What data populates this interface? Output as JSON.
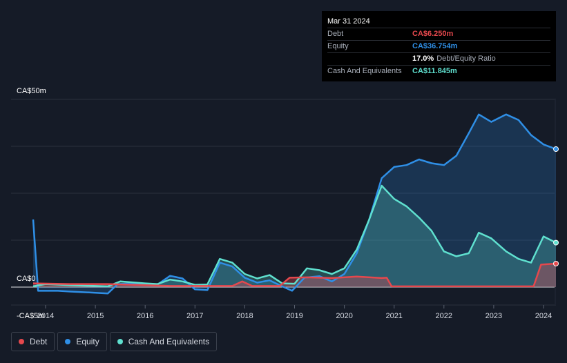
{
  "tooltip": {
    "date": "Mar 31 2024",
    "rows": [
      {
        "label": "Debt",
        "value": "CA$6.250m",
        "color": "#e5484d"
      },
      {
        "label": "Equity",
        "value": "CA$36.754m",
        "color": "#2f8fe6"
      },
      {
        "label": "",
        "value": "17.0%",
        "extra": "Debt/Equity Ratio",
        "color": "#ffffff"
      },
      {
        "label": "Cash And Equivalents",
        "value": "CA$11.845m",
        "color": "#5fe0cf"
      }
    ]
  },
  "legend": [
    {
      "label": "Debt",
      "color": "#e5484d"
    },
    {
      "label": "Equity",
      "color": "#2f8fe6"
    },
    {
      "label": "Cash And Equivalents",
      "color": "#5fe0cf"
    }
  ],
  "chart_data": {
    "type": "area",
    "y_tick_labels": [
      "CA$50m",
      "CA$0",
      "-CA$5m"
    ],
    "ylim": [
      -5,
      50
    ],
    "xlim": [
      2013.5,
      2024.25
    ],
    "x_tick_labels": [
      "2014",
      "2015",
      "2016",
      "2017",
      "2018",
      "2019",
      "2020",
      "2021",
      "2022",
      "2023",
      "2024"
    ],
    "grid": true,
    "legend_position": "bottom-left",
    "series": [
      {
        "name": "Debt",
        "color": "#e5484d",
        "points": [
          [
            2013.75,
            1.0
          ],
          [
            2014.5,
            0.8
          ],
          [
            2015.25,
            0.8
          ],
          [
            2016.0,
            0.5
          ],
          [
            2016.5,
            0.3
          ],
          [
            2017.0,
            0.3
          ],
          [
            2017.75,
            0.3
          ],
          [
            2017.95,
            1.5
          ],
          [
            2018.15,
            0.3
          ],
          [
            2018.7,
            0.3
          ],
          [
            2018.9,
            2.5
          ],
          [
            2019.25,
            2.6
          ],
          [
            2019.75,
            2.4
          ],
          [
            2020.25,
            2.8
          ],
          [
            2020.75,
            2.4
          ],
          [
            2020.85,
            2.5
          ],
          [
            2020.95,
            0.2
          ],
          [
            2021.5,
            0.2
          ],
          [
            2022.5,
            0.2
          ],
          [
            2023.5,
            0.2
          ],
          [
            2023.8,
            0.2
          ],
          [
            2023.95,
            6.0
          ],
          [
            2024.25,
            6.25
          ]
        ]
      },
      {
        "name": "Equity",
        "color": "#2f8fe6",
        "points": [
          [
            2013.75,
            18
          ],
          [
            2013.85,
            -1.0
          ],
          [
            2014.0,
            -1.0
          ],
          [
            2014.25,
            -1.0
          ],
          [
            2014.5,
            -1.2
          ],
          [
            2015.0,
            -1.5
          ],
          [
            2015.25,
            -1.7
          ],
          [
            2015.45,
            0.8
          ],
          [
            2015.75,
            1.0
          ],
          [
            2016.0,
            0.8
          ],
          [
            2016.25,
            0.7
          ],
          [
            2016.5,
            3.0
          ],
          [
            2016.75,
            2.3
          ],
          [
            2017.0,
            -0.6
          ],
          [
            2017.25,
            -0.8
          ],
          [
            2017.5,
            6.5
          ],
          [
            2017.75,
            5.5
          ],
          [
            2018.0,
            2.5
          ],
          [
            2018.25,
            1.2
          ],
          [
            2018.5,
            1.8
          ],
          [
            2018.75,
            0.2
          ],
          [
            2018.95,
            -1.0
          ],
          [
            2019.2,
            2.5
          ],
          [
            2019.5,
            2.9
          ],
          [
            2019.75,
            1.5
          ],
          [
            2020.0,
            3.5
          ],
          [
            2020.25,
            9.0
          ],
          [
            2020.5,
            18.0
          ],
          [
            2020.75,
            29.0
          ],
          [
            2021.0,
            32.0
          ],
          [
            2021.25,
            32.5
          ],
          [
            2021.5,
            34.0
          ],
          [
            2021.75,
            33.0
          ],
          [
            2022.0,
            32.5
          ],
          [
            2022.25,
            35.0
          ],
          [
            2022.5,
            41.0
          ],
          [
            2022.7,
            46.0
          ],
          [
            2022.95,
            44.0
          ],
          [
            2023.25,
            46.0
          ],
          [
            2023.5,
            44.5
          ],
          [
            2023.75,
            40.5
          ],
          [
            2024.0,
            38.0
          ],
          [
            2024.25,
            36.754
          ]
        ]
      },
      {
        "name": "Cash And Equivalents",
        "color": "#5fe0cf",
        "points": [
          [
            2013.75,
            0.2
          ],
          [
            2014.0,
            0.8
          ],
          [
            2014.5,
            0.5
          ],
          [
            2015.25,
            0.2
          ],
          [
            2015.5,
            1.5
          ],
          [
            2016.0,
            1.0
          ],
          [
            2016.25,
            0.8
          ],
          [
            2016.5,
            2.0
          ],
          [
            2016.75,
            1.5
          ],
          [
            2017.0,
            0.6
          ],
          [
            2017.25,
            0.7
          ],
          [
            2017.5,
            7.5
          ],
          [
            2017.75,
            6.5
          ],
          [
            2018.0,
            3.5
          ],
          [
            2018.25,
            2.3
          ],
          [
            2018.5,
            3.2
          ],
          [
            2018.75,
            1.0
          ],
          [
            2019.0,
            0.9
          ],
          [
            2019.25,
            5.0
          ],
          [
            2019.5,
            4.5
          ],
          [
            2019.75,
            3.5
          ],
          [
            2020.0,
            5.0
          ],
          [
            2020.25,
            10.0
          ],
          [
            2020.5,
            18.0
          ],
          [
            2020.75,
            27.0
          ],
          [
            2021.0,
            23.5
          ],
          [
            2021.25,
            21.5
          ],
          [
            2021.5,
            18.5
          ],
          [
            2021.75,
            15.0
          ],
          [
            2022.0,
            9.5
          ],
          [
            2022.25,
            8.2
          ],
          [
            2022.5,
            9.0
          ],
          [
            2022.7,
            14.5
          ],
          [
            2022.95,
            13.0
          ],
          [
            2023.25,
            9.5
          ],
          [
            2023.5,
            7.5
          ],
          [
            2023.75,
            6.5
          ],
          [
            2024.0,
            13.5
          ],
          [
            2024.25,
            11.845
          ]
        ]
      }
    ]
  }
}
